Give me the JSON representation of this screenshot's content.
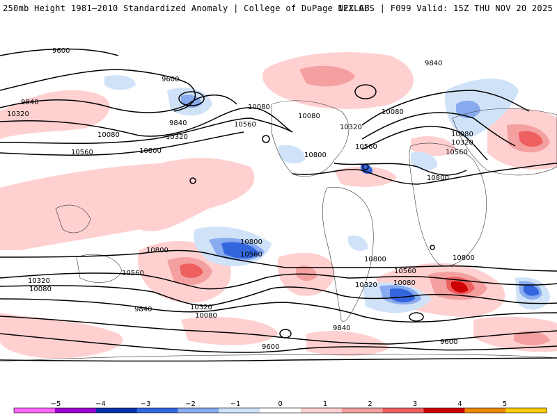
{
  "header": {
    "left": "250mb Height 1981–2010 Standardized Anomaly | College of DuPage NEXLAB",
    "right": "12Z GFS | F099 Valid: 15Z THU NOV 20 2025"
  },
  "colorbar": {
    "labels": [
      "−5",
      "−4",
      "−3",
      "−2",
      "−1",
      "0",
      "1",
      "2",
      "3",
      "4",
      "5"
    ],
    "colors": [
      "#ff66ff",
      "#9900cc",
      "#0033aa",
      "#3366dd",
      "#88aaee",
      "#cfe2f8",
      "#ffffff",
      "#ffd0d0",
      "#f4a0a0",
      "#ee6060",
      "#cc0000",
      "#ee8800",
      "#ffcc00"
    ]
  },
  "contours": [
    {
      "label": "9600"
    },
    {
      "label": "9600"
    },
    {
      "label": "9840"
    },
    {
      "label": "10320"
    },
    {
      "label": "10080"
    },
    {
      "label": "10560"
    },
    {
      "label": "10800"
    },
    {
      "label": "10320"
    },
    {
      "label": "9840"
    },
    {
      "label": "10080"
    },
    {
      "label": "10560"
    },
    {
      "label": "10080"
    },
    {
      "label": "10320"
    },
    {
      "label": "10560"
    },
    {
      "label": "10800"
    },
    {
      "label": "9840"
    },
    {
      "label": "10080"
    },
    {
      "label": "10080"
    },
    {
      "label": "10320"
    },
    {
      "label": "10560"
    },
    {
      "label": "10800"
    },
    {
      "label": "10800"
    },
    {
      "label": "10560"
    },
    {
      "label": "10800"
    },
    {
      "label": "10560"
    },
    {
      "label": "10320"
    },
    {
      "label": "10080"
    },
    {
      "label": "10320"
    },
    {
      "label": "10080"
    },
    {
      "label": "9840"
    },
    {
      "label": "10800"
    },
    {
      "label": "10560"
    },
    {
      "label": "10320"
    },
    {
      "label": "10080"
    },
    {
      "label": "9840"
    },
    {
      "label": "9600"
    },
    {
      "label": "9600"
    },
    {
      "label": "10800"
    }
  ]
}
